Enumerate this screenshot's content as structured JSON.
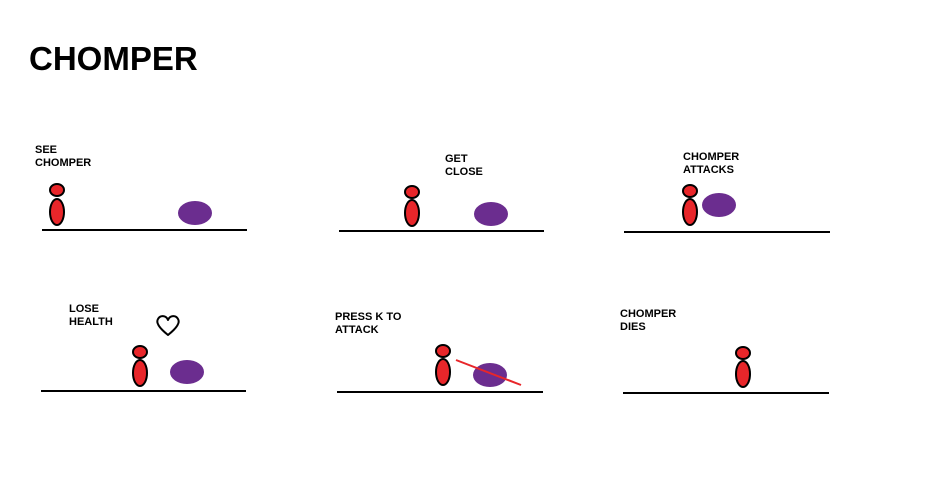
{
  "title": "CHOMPER",
  "colors": {
    "player_fill": "#e8262a",
    "chomper_fill": "#6b2d8f",
    "attack_line": "#e8262a",
    "ground": "#000000"
  },
  "panels": [
    {
      "label": "SEE\nCHOMPER"
    },
    {
      "label": "GET\nCLOSE"
    },
    {
      "label": "CHOMPER\nATTACKS"
    },
    {
      "label": "LOSE\nHEALTH",
      "icon": "heart-icon"
    },
    {
      "label": "PRESS K TO\nATTACK",
      "icon": "attack-slash"
    },
    {
      "label": "CHOMPER\nDIES"
    }
  ]
}
